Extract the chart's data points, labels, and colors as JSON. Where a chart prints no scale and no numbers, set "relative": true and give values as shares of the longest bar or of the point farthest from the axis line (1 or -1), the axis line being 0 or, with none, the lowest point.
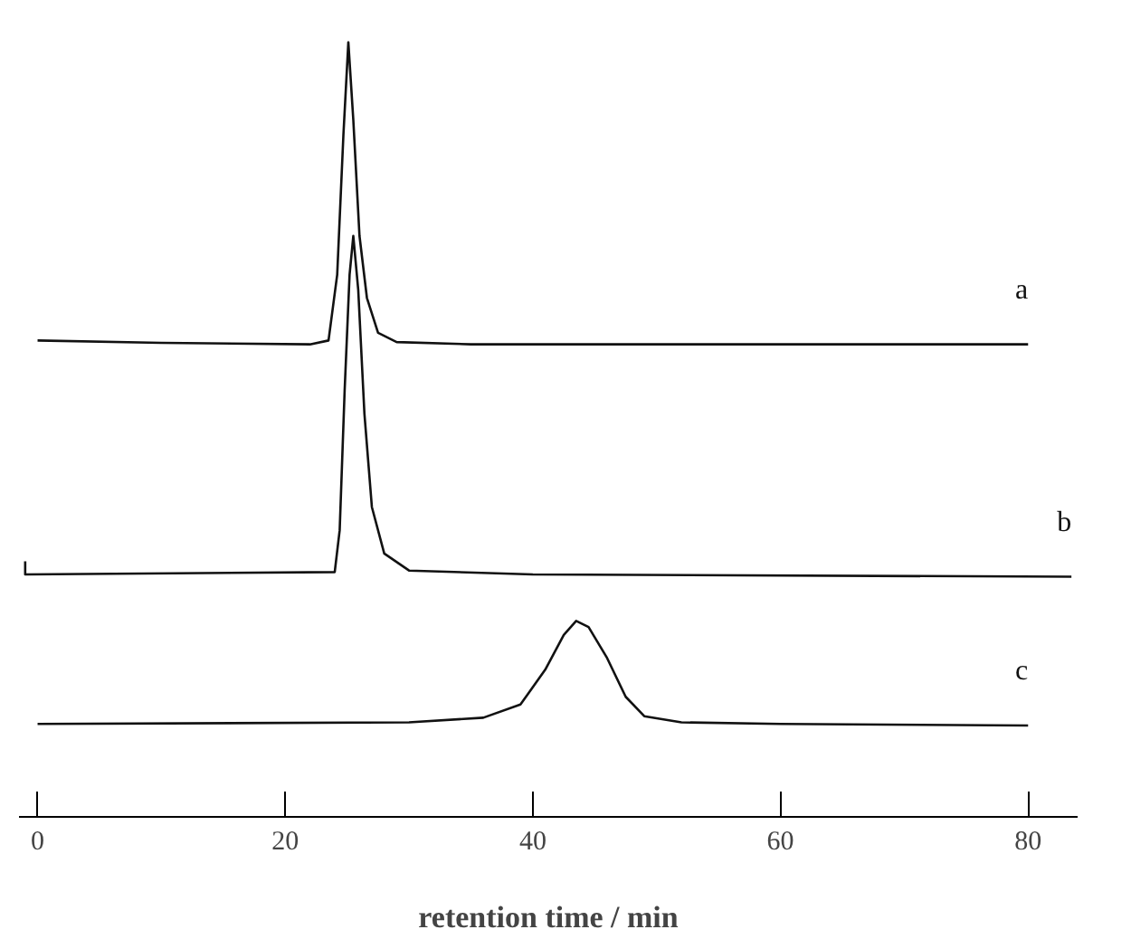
{
  "chart_data": {
    "type": "line",
    "relative": true,
    "xlabel": "retention time / min",
    "xlim": [
      -1.5,
      84
    ],
    "xticks": [
      0,
      20,
      40,
      60,
      80
    ],
    "grid": false,
    "marker": "none",
    "line_style": "solid",
    "series": [
      {
        "name": "a",
        "color": "#111111",
        "x": [
          0,
          10,
          22,
          23.5,
          24.2,
          24.7,
          25.1,
          25.5,
          26,
          26.6,
          27.5,
          29,
          35,
          80
        ],
        "values": [
          0.615,
          0.612,
          0.61,
          0.615,
          0.7,
          0.88,
          1.0,
          0.9,
          0.75,
          0.67,
          0.625,
          0.613,
          0.61,
          0.61
        ]
      },
      {
        "name": "b",
        "color": "#111111",
        "x": [
          -1,
          -1,
          24,
          24.4,
          24.8,
          25.2,
          25.5,
          25.9,
          26.4,
          27,
          28,
          30,
          40,
          83.5
        ],
        "values": [
          0.33,
          0.313,
          0.316,
          0.37,
          0.55,
          0.7,
          0.75,
          0.68,
          0.52,
          0.4,
          0.34,
          0.318,
          0.313,
          0.31
        ]
      },
      {
        "name": "c",
        "color": "#111111",
        "x": [
          0,
          30,
          36,
          39,
          41,
          42.5,
          43.5,
          44.5,
          46,
          47.5,
          49,
          52,
          60,
          80
        ],
        "values": [
          0.12,
          0.122,
          0.128,
          0.145,
          0.19,
          0.235,
          0.253,
          0.245,
          0.205,
          0.155,
          0.13,
          0.122,
          0.12,
          0.118
        ]
      }
    ]
  }
}
